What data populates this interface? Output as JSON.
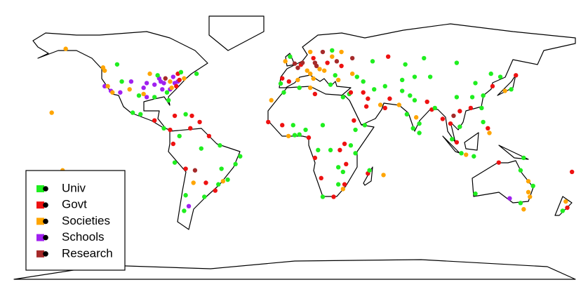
{
  "legend": [
    {
      "label": "Univ",
      "color": "#1fee1f"
    },
    {
      "label": "Govt",
      "color": "#ee1111"
    },
    {
      "label": "Societies",
      "color": "#ffa500"
    },
    {
      "label": "Schools",
      "color": "#a020f0"
    },
    {
      "label": "Research",
      "color": "#a52a2a"
    }
  ],
  "points": [
    [
      -75,
      40,
      3
    ],
    [
      -77,
      39,
      3
    ],
    [
      -80,
      40,
      2
    ],
    [
      -84,
      39,
      3
    ],
    [
      -87,
      42,
      3
    ],
    [
      -90,
      38,
      3
    ],
    [
      -83,
      42,
      4
    ],
    [
      -71,
      42,
      2
    ],
    [
      -74,
      41,
      1
    ],
    [
      -78,
      43,
      3
    ],
    [
      -85,
      35,
      3
    ],
    [
      -80,
      35,
      3
    ],
    [
      -82,
      33,
      0
    ],
    [
      -95,
      39,
      3
    ],
    [
      -97,
      36,
      3
    ],
    [
      -93,
      45,
      2
    ],
    [
      -88,
      44,
      0
    ],
    [
      -76,
      37,
      1
    ],
    [
      -81,
      28,
      0
    ],
    [
      -95,
      30,
      3
    ],
    [
      -97,
      32,
      2
    ],
    [
      -105,
      40,
      3
    ],
    [
      -112,
      33,
      3
    ],
    [
      -118,
      34,
      3
    ],
    [
      -122,
      37,
      3
    ],
    [
      -122,
      47,
      2
    ],
    [
      -111,
      40,
      0
    ],
    [
      -117,
      33,
      2
    ],
    [
      -90,
      30,
      0
    ],
    [
      -86,
      40,
      3
    ],
    [
      -79,
      36,
      2
    ],
    [
      -100,
      31,
      0
    ],
    [
      -104,
      20,
      0
    ],
    [
      -99,
      19,
      0
    ],
    [
      -90,
      15,
      1
    ],
    [
      -84,
      10,
      0
    ],
    [
      -80,
      9,
      1
    ],
    [
      -77,
      18,
      1
    ],
    [
      -70,
      19,
      0
    ],
    [
      -66,
      18,
      1
    ],
    [
      -61,
      14,
      1
    ],
    [
      -106,
      35,
      2
    ],
    [
      -120,
      37,
      2
    ],
    [
      -75,
      45,
      1
    ],
    [
      -73,
      46,
      0
    ],
    [
      -63,
      45,
      0
    ],
    [
      -114,
      51,
      0
    ],
    [
      -123,
      49,
      2
    ],
    [
      -147,
      61,
      2
    ],
    [
      -156,
      20,
      2
    ],
    [
      -74,
      5,
      0
    ],
    [
      -78,
      0,
      1
    ],
    [
      -77,
      -12,
      0
    ],
    [
      -70,
      -16,
      1
    ],
    [
      -70,
      -33,
      0
    ],
    [
      -58,
      -34,
      0
    ],
    [
      -57,
      -25,
      1
    ],
    [
      -47,
      -16,
      0
    ],
    [
      -43,
      -23,
      0
    ],
    [
      -46,
      -24,
      2
    ],
    [
      -38,
      -13,
      0
    ],
    [
      -35,
      -8,
      0
    ],
    [
      -48,
      -1,
      0
    ],
    [
      -60,
      -3,
      0
    ],
    [
      -67,
      10,
      1
    ],
    [
      -64,
      -17,
      4
    ],
    [
      -65,
      -25,
      2
    ],
    [
      -68,
      -40,
      3
    ],
    [
      -71,
      -43,
      0
    ],
    [
      -51,
      -30,
      1
    ],
    [
      -49,
      -26,
      0
    ],
    [
      -55,
      5,
      1
    ],
    [
      0,
      51.5,
      4
    ],
    [
      2,
      48.8,
      4
    ],
    [
      -3.7,
      40,
      1
    ],
    [
      -9,
      38.7,
      0
    ],
    [
      13,
      52,
      4
    ],
    [
      12,
      41.9,
      2
    ],
    [
      10,
      45,
      2
    ],
    [
      16,
      48,
      2
    ],
    [
      21,
      52,
      1
    ],
    [
      19,
      47,
      2
    ],
    [
      24,
      60,
      0
    ],
    [
      18,
      59,
      4
    ],
    [
      10,
      59,
      2
    ],
    [
      12,
      55,
      1
    ],
    [
      4,
      50.8,
      1
    ],
    [
      5,
      52,
      4
    ],
    [
      8,
      47,
      2
    ],
    [
      14,
      50,
      4
    ],
    [
      26,
      44,
      0
    ],
    [
      23,
      38,
      0
    ],
    [
      28,
      41,
      2
    ],
    [
      37,
      55,
      4
    ],
    [
      30,
      59,
      2
    ],
    [
      30,
      50,
      1
    ],
    [
      -6,
      53,
      2
    ],
    [
      -3,
      56,
      0
    ],
    [
      27,
      53,
      4
    ],
    [
      44,
      40,
      0
    ],
    [
      40,
      43,
      0
    ],
    [
      24,
      56,
      2
    ],
    [
      -8,
      42,
      1
    ],
    [
      2,
      41,
      2
    ],
    [
      31,
      30,
      0
    ],
    [
      35,
      32,
      0
    ],
    [
      36,
      33,
      1
    ],
    [
      44,
      33,
      1
    ],
    [
      51,
      35,
      0
    ],
    [
      46,
      24,
      1
    ],
    [
      55,
      25,
      2
    ],
    [
      58,
      23,
      1
    ],
    [
      45,
      12,
      0
    ],
    [
      39,
      9,
      0
    ],
    [
      36,
      -1,
      0
    ],
    [
      32,
      0,
      1
    ],
    [
      39,
      -6,
      0
    ],
    [
      33,
      -13,
      1
    ],
    [
      28,
      -15,
      0
    ],
    [
      31,
      -18,
      0
    ],
    [
      32,
      -26,
      1
    ],
    [
      28,
      -26,
      0
    ],
    [
      18,
      -34,
      0
    ],
    [
      25,
      -34,
      1
    ],
    [
      31,
      -29,
      2
    ],
    [
      17,
      -22,
      1
    ],
    [
      13,
      -9,
      1
    ],
    [
      15,
      -4,
      0
    ],
    [
      9,
      4,
      1
    ],
    [
      3,
      6,
      0
    ],
    [
      0,
      5.6,
      0
    ],
    [
      -4,
      5,
      2
    ],
    [
      -17,
      14,
      1
    ],
    [
      -8,
      12,
      1
    ],
    [
      -7,
      33,
      0
    ],
    [
      3,
      36,
      0
    ],
    [
      10,
      36,
      2
    ],
    [
      13,
      32,
      1
    ],
    [
      -15,
      28,
      2
    ],
    [
      47,
      -19,
      1
    ],
    [
      57,
      -20,
      2
    ],
    [
      18,
      12,
      0
    ],
    [
      38,
      15,
      1
    ],
    [
      29,
      -4,
      1
    ],
    [
      -1,
      12,
      0
    ],
    [
      7,
      9,
      0
    ],
    [
      23,
      -4,
      0
    ],
    [
      48,
      -17,
      0
    ],
    [
      69,
      34,
      0
    ],
    [
      67,
      25,
      2
    ],
    [
      74,
      31,
      0
    ],
    [
      77,
      28,
      0
    ],
    [
      72,
      19,
      0
    ],
    [
      78,
      17,
      2
    ],
    [
      80,
      13,
      0
    ],
    [
      76,
      10,
      0
    ],
    [
      88,
      22,
      1
    ],
    [
      85,
      27,
      1
    ],
    [
      90,
      23,
      0
    ],
    [
      80,
      7,
      0
    ],
    [
      100,
      13,
      1
    ],
    [
      102,
      18,
      4
    ],
    [
      106,
      21,
      1
    ],
    [
      106,
      11,
      0
    ],
    [
      101,
      3,
      0
    ],
    [
      104,
      1,
      1
    ],
    [
      107,
      -6,
      0
    ],
    [
      110,
      -7,
      2
    ],
    [
      121,
      14,
      0
    ],
    [
      124,
      10,
      1
    ],
    [
      115,
      -8,
      0
    ],
    [
      116,
      39,
      0
    ],
    [
      121,
      31,
      0
    ],
    [
      113,
      23,
      1
    ],
    [
      114,
      30,
      0
    ],
    [
      104,
      30,
      0
    ],
    [
      127,
      37,
      1
    ],
    [
      139,
      35,
      0
    ],
    [
      135,
      34,
      2
    ],
    [
      126,
      45,
      0
    ],
    [
      87,
      43,
      0
    ],
    [
      71,
      51,
      0
    ],
    [
      69,
      41,
      0
    ],
    [
      77,
      43,
      0
    ],
    [
      104,
      52,
      0
    ],
    [
      83,
      55,
      0
    ],
    [
      60,
      56,
      1
    ],
    [
      50,
      53,
      0
    ],
    [
      37,
      45,
      2
    ],
    [
      58,
      37,
      0
    ],
    [
      120,
      23,
      0
    ],
    [
      95,
      16,
      1
    ],
    [
      125,
      7,
      2
    ],
    [
      132,
      43,
      0
    ],
    [
      142,
      44,
      1
    ],
    [
      47,
      29,
      1
    ],
    [
      61,
      29,
      1
    ],
    [
      151,
      -34,
      2
    ],
    [
      145,
      -38,
      0
    ],
    [
      138,
      -35,
      3
    ],
    [
      153,
      -27,
      0
    ],
    [
      116,
      -32,
      0
    ],
    [
      147,
      -42,
      2
    ],
    [
      131,
      -12,
      1
    ],
    [
      145,
      -17,
      0
    ],
    [
      150,
      -24,
      2
    ],
    [
      175,
      -41,
      1
    ],
    [
      174,
      -37,
      2
    ],
    [
      172,
      -43,
      0
    ],
    [
      147,
      -9,
      0
    ],
    [
      178,
      -18,
      1
    ],
    [
      -149,
      -17,
      2
    ],
    [
      150,
      -31,
      2
    ]
  ]
}
